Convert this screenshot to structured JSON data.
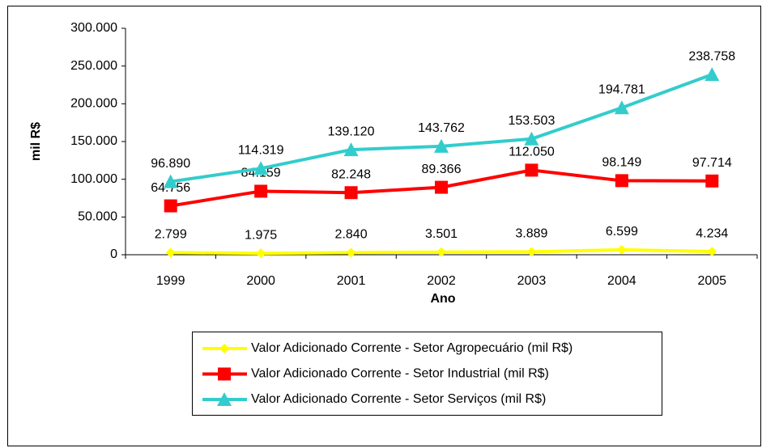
{
  "chart_data": {
    "type": "line",
    "x_label": "Ano",
    "y_label": "mil R$",
    "categories": [
      "1999",
      "2000",
      "2001",
      "2002",
      "2003",
      "2004",
      "2005"
    ],
    "series": [
      {
        "name": "Valor Adicionado Corrente - Setor Agropecuário (mil R$)",
        "color": "#ffff00",
        "marker": "diamond",
        "values": [
          2799,
          1975,
          2840,
          3501,
          3889,
          6599,
          4234
        ],
        "value_labels": [
          "2.799",
          "1.975",
          "2.840",
          "3.501",
          "3.889",
          "6.599",
          "4.234"
        ]
      },
      {
        "name": "Valor Adicionado Corrente - Setor Industrial (mil R$)",
        "color": "#ff0000",
        "marker": "square",
        "values": [
          64756,
          84159,
          82248,
          89366,
          112050,
          98149,
          97714
        ],
        "value_labels": [
          "64.756",
          "84.159",
          "82.248",
          "89.366",
          "112.050",
          "98.149",
          "97.714"
        ]
      },
      {
        "name": "Valor Adicionado Corrente - Setor Serviços (mil R$)",
        "color": "#33cccc",
        "marker": "triangle",
        "values": [
          96890,
          114319,
          139120,
          143762,
          153503,
          194781,
          238758
        ],
        "value_labels": [
          "96.890",
          "114.319",
          "139.120",
          "143.762",
          "153.503",
          "194.781",
          "238.758"
        ]
      }
    ],
    "ylim": [
      0,
      300000
    ],
    "yticks": [
      0,
      {
        "value": 50000,
        "label": "50.000"
      },
      {
        "value": 100000,
        "label": "100.000"
      },
      {
        "value": 150000,
        "label": "150.000"
      },
      {
        "value": 200000,
        "label": "200.000"
      },
      {
        "value": 250000,
        "label": "250.000"
      },
      {
        "value": 300000,
        "label": "300.000"
      }
    ],
    "grid": false,
    "legend": "bottom"
  }
}
